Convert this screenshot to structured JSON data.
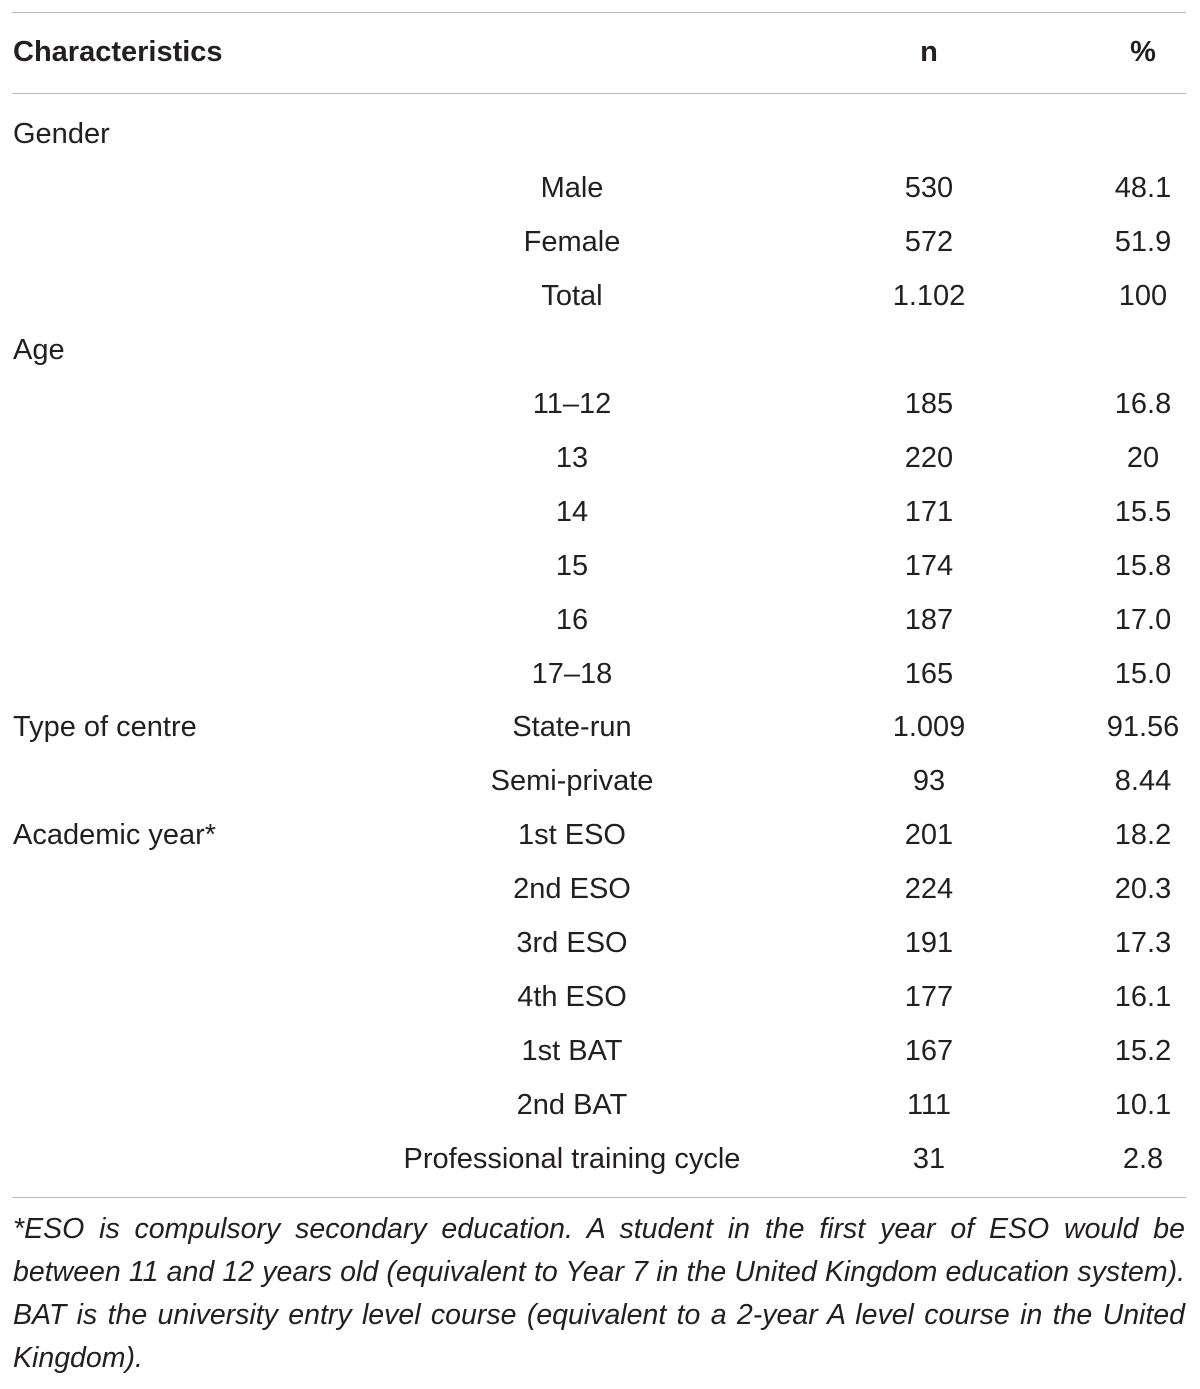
{
  "table": {
    "headers": {
      "characteristic": "Characteristics",
      "n": "n",
      "percent": "%"
    },
    "rows": [
      {
        "group": "Gender",
        "sub": "",
        "n": "",
        "pct": ""
      },
      {
        "group": "",
        "sub": "Male",
        "n": "530",
        "pct": "48.1"
      },
      {
        "group": "",
        "sub": "Female",
        "n": "572",
        "pct": "51.9"
      },
      {
        "group": "",
        "sub": "Total",
        "n": "1.102",
        "pct": "100"
      },
      {
        "group": "Age",
        "sub": "",
        "n": "",
        "pct": ""
      },
      {
        "group": "",
        "sub": "11–12",
        "n": "185",
        "pct": "16.8"
      },
      {
        "group": "",
        "sub": "13",
        "n": "220",
        "pct": "20"
      },
      {
        "group": "",
        "sub": "14",
        "n": "171",
        "pct": "15.5"
      },
      {
        "group": "",
        "sub": "15",
        "n": "174",
        "pct": "15.8"
      },
      {
        "group": "",
        "sub": "16",
        "n": "187",
        "pct": "17.0"
      },
      {
        "group": "",
        "sub": "17–18",
        "n": "165",
        "pct": "15.0"
      },
      {
        "group": "Type of centre",
        "sub": "State-run",
        "n": "1.009",
        "pct": "91.56"
      },
      {
        "group": "",
        "sub": "Semi-private",
        "n": "93",
        "pct": "8.44"
      },
      {
        "group": "Academic year*",
        "sub": "1st ESO",
        "n": "201",
        "pct": "18.2"
      },
      {
        "group": "",
        "sub": "2nd ESO",
        "n": "224",
        "pct": "20.3"
      },
      {
        "group": "",
        "sub": "3rd ESO",
        "n": "191",
        "pct": "17.3"
      },
      {
        "group": "",
        "sub": "4th ESO",
        "n": "177",
        "pct": "16.1"
      },
      {
        "group": "",
        "sub": "1st BAT",
        "n": "167",
        "pct": "15.2"
      },
      {
        "group": "",
        "sub": "2nd BAT",
        "n": "111",
        "pct": "10.1"
      },
      {
        "group": "",
        "sub": "Professional training cycle",
        "n": "31",
        "pct": "2.8"
      }
    ]
  },
  "footnote": "*ESO is compulsory secondary education. A student in the first year of ESO would be between 11 and 12 years old (equivalent to Year 7 in the United Kingdom education system). BAT is the university entry level course (equivalent to a 2-year A level course in the United Kingdom)."
}
